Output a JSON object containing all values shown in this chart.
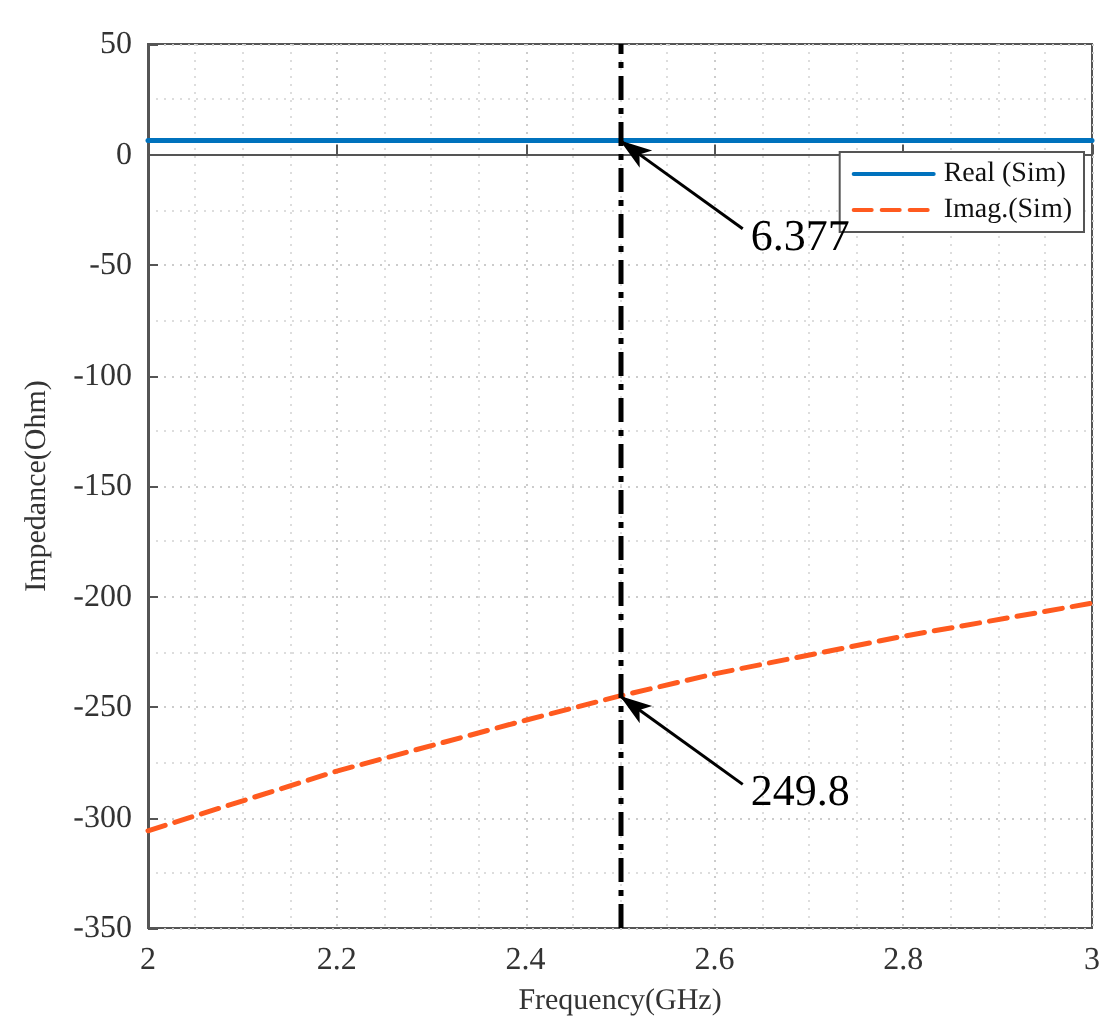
{
  "chart_data": {
    "type": "line",
    "xlabel": "Frequency(GHz)",
    "ylabel": "Impedance(Ohm)",
    "xlim": [
      2,
      3
    ],
    "xticks": [
      2,
      2.2,
      2.4,
      2.6,
      2.8,
      3
    ],
    "ylim": [
      -350,
      50
    ],
    "yticks": [
      -350,
      -300,
      -250,
      -200,
      -150,
      -100,
      -50,
      0,
      50
    ],
    "series": [
      {
        "name": "Real (Sim)",
        "color": "#0072bd",
        "line_style": "solid",
        "x": [
          2,
          2.5,
          3
        ],
        "values": [
          6.377,
          6.377,
          6.377
        ]
      },
      {
        "name": "Imag.(Sim)",
        "color": "#ff5a1f",
        "line_style": "dashed",
        "x": [
          2,
          2.2,
          2.4,
          2.5,
          2.6,
          2.8,
          3
        ],
        "values": [
          -306,
          -279,
          -256,
          -245,
          -235,
          -218,
          -203
        ]
      }
    ],
    "ref_lines": [
      {
        "axis": "x",
        "value": 2.5,
        "color": "#000000",
        "line_style": "dashed"
      }
    ],
    "annotations": [
      {
        "text": "6.377",
        "x": 2.5,
        "y": 6.377
      },
      {
        "text": "249.8",
        "x": 2.5,
        "y": -245
      }
    ],
    "grid": true,
    "legend": "top right",
    "marker": "none"
  }
}
